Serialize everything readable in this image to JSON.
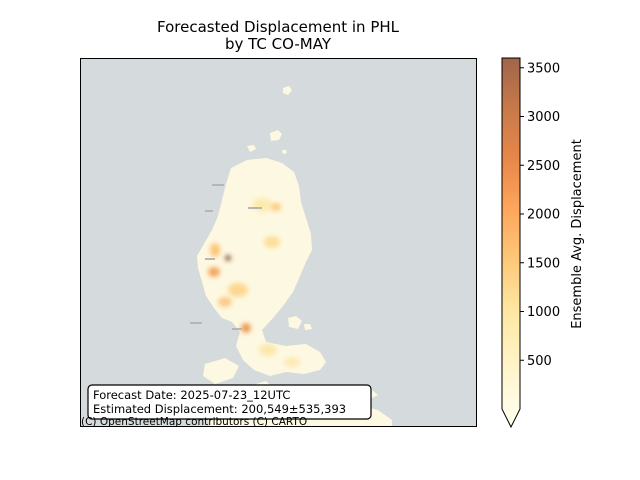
{
  "figure": {
    "title_line1": "Forecasted Displacement in PHL",
    "title_line2": "by TC CO-MAY"
  },
  "map": {
    "ocean_color": "#d5dadc",
    "land_color": "#fdf8e1",
    "country": "PHL",
    "storm": "CO-MAY",
    "basemap_attribution": "(C) OpenStreetMap contributors (C) CARTO"
  },
  "info_box": {
    "forecast_date": "Forecast Date: 2025-07-23_12UTC",
    "estimated_displacement": "Estimated Displacement: 200,549±535,393"
  },
  "colorbar": {
    "label": "Ensemble Avg. Displacement",
    "tick_labels": [
      "500",
      "1000",
      "1500",
      "2000",
      "2500",
      "3000",
      "3500"
    ],
    "tick_values": [
      500,
      1000,
      1500,
      2000,
      2500,
      3000,
      3500
    ],
    "range": [
      0,
      3600
    ],
    "extend": "min",
    "colormap": "YlOrBr-like (alpha blended)",
    "color_stops": [
      "#fffde8",
      "#fff3c5",
      "#fee7a2",
      "#fec97a",
      "#fda65c",
      "#e8874a",
      "#c97a4b",
      "#a0654a"
    ]
  },
  "chart_data": {
    "type": "heatmap",
    "title": "Forecasted Displacement in PHL\nby TC CO-MAY",
    "colorbar_label": "Ensemble Avg. Displacement",
    "value_range": [
      0,
      3600
    ],
    "hotspots": [
      {
        "approx_value": 3500
      },
      {
        "approx_value": 2500
      },
      {
        "approx_value": 2300
      },
      {
        "approx_value": 1800
      },
      {
        "approx_value": 1600
      }
    ]
  }
}
